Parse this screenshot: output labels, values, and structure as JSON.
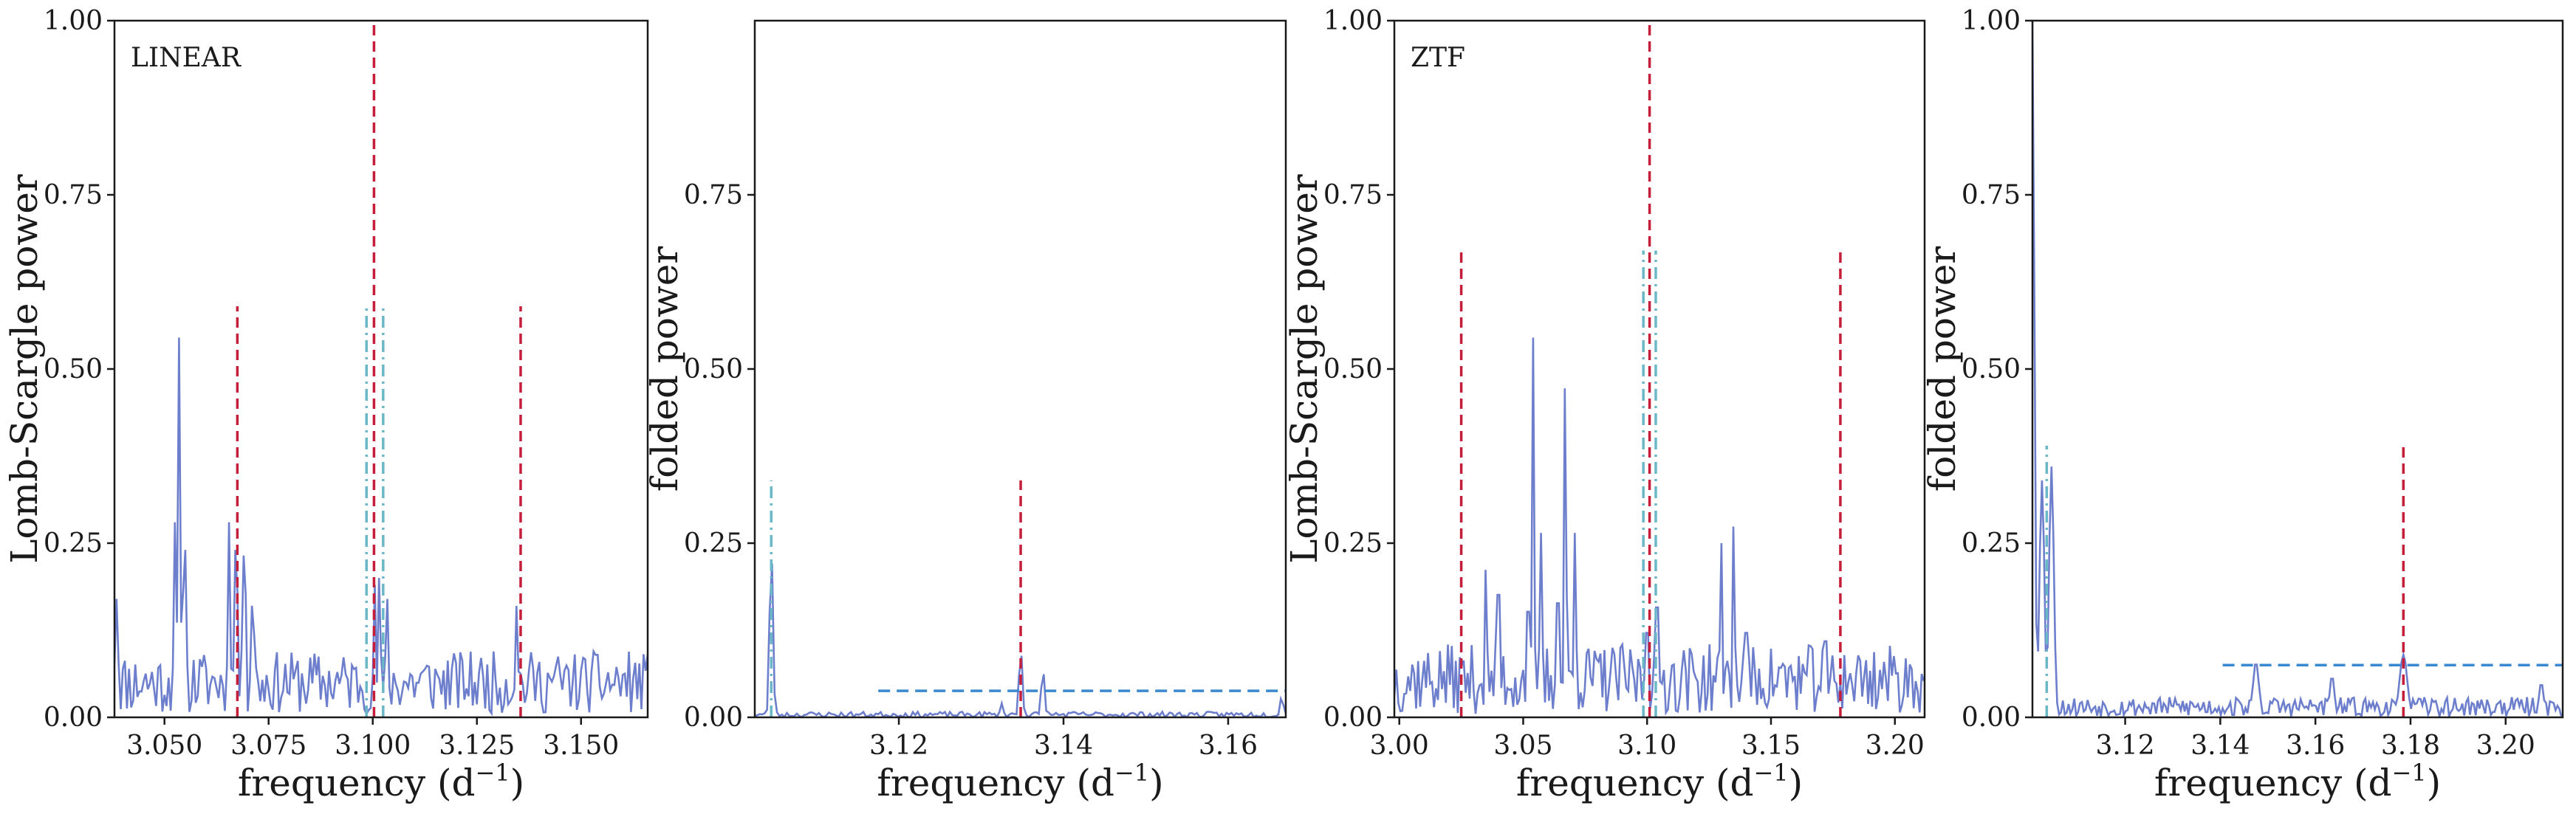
{
  "figure": {
    "colors": {
      "series": "#6d7fcc",
      "red": "#c41e3a",
      "cyan": "#6ab7c8",
      "blue_dash": "#3a88d0",
      "axis": "#1a1a1a"
    }
  },
  "chart_data": [
    {
      "type": "line",
      "title": "",
      "panel_label": "LINEAR",
      "xlabel_main": "frequency (d",
      "xlabel_sup": "−1",
      "xlabel_tail": ")",
      "ylabel": "Lomb-Scargle power",
      "xlim": [
        3.038,
        3.166
      ],
      "ylim": [
        0,
        1
      ],
      "xticks": [
        3.05,
        3.075,
        3.1,
        3.125,
        3.15
      ],
      "xtick_labels": [
        "3.050",
        "3.075",
        "3.100",
        "3.125",
        "3.150"
      ],
      "yticks": [
        0,
        0.25,
        0.5,
        0.75,
        1.0
      ],
      "ytick_labels": [
        "0.00",
        "0.25",
        "0.50",
        "0.75",
        "1.00"
      ],
      "noise": {
        "mean": 0.05,
        "amp": 0.045,
        "step": 0.0005,
        "seed": 11
      },
      "peaks": [
        {
          "x": 3.0385,
          "y": 0.17,
          "w": 0.0004
        },
        {
          "x": 3.0525,
          "y": 0.28,
          "w": 0.0003
        },
        {
          "x": 3.0535,
          "y": 0.545,
          "w": 0.0003
        },
        {
          "x": 3.0548,
          "y": 0.3,
          "w": 0.0003
        },
        {
          "x": 3.0655,
          "y": 0.28,
          "w": 0.0003
        },
        {
          "x": 3.0672,
          "y": 0.3,
          "w": 0.0003
        },
        {
          "x": 3.0692,
          "y": 0.29,
          "w": 0.0003
        },
        {
          "x": 3.0712,
          "y": 0.2,
          "w": 0.0003
        },
        {
          "x": 3.1005,
          "y": 0.19,
          "w": 0.0003
        },
        {
          "x": 3.1015,
          "y": 0.2,
          "w": 0.0003
        },
        {
          "x": 3.1035,
          "y": 0.17,
          "w": 0.0003
        },
        {
          "x": 3.1345,
          "y": 0.16,
          "w": 0.0003
        }
      ],
      "red_lines": [
        {
          "x": 3.0675,
          "ymax": 0.59
        },
        {
          "x": 3.1003,
          "ymax": 1.0
        },
        {
          "x": 3.1355,
          "ymax": 0.59
        }
      ],
      "cyan_lines": [
        {
          "x": 3.0985,
          "ymax": 0.59
        },
        {
          "x": 3.1025,
          "ymax": 0.59
        }
      ],
      "blue_hline": null
    },
    {
      "type": "line",
      "title": "",
      "panel_label": "",
      "xlabel_main": "frequency (d",
      "xlabel_sup": "−1",
      "xlabel_tail": ")",
      "ylabel": "folded power",
      "xlim": [
        3.1025,
        3.167
      ],
      "ylim": [
        0,
        1
      ],
      "xticks": [
        3.12,
        3.14,
        3.16
      ],
      "xtick_labels": [
        "3.12",
        "3.14",
        "3.16"
      ],
      "yticks": [
        0,
        0.25,
        0.5,
        0.75
      ],
      "ytick_labels": [
        "0.00",
        "0.25",
        "0.50",
        "0.75"
      ],
      "noise": {
        "mean": 0.004,
        "amp": 0.004,
        "step": 0.0003,
        "seed": 23
      },
      "peaks": [
        {
          "x": 3.1045,
          "y": 0.25,
          "w": 0.0002
        },
        {
          "x": 3.1325,
          "y": 0.02,
          "w": 0.0002
        },
        {
          "x": 3.1348,
          "y": 0.1,
          "w": 0.0002
        },
        {
          "x": 3.1375,
          "y": 0.07,
          "w": 0.0002
        },
        {
          "x": 3.1665,
          "y": 0.03,
          "w": 0.0002
        }
      ],
      "red_lines": [
        {
          "x": 3.1348,
          "ymax": 0.34
        }
      ],
      "cyan_lines": [
        {
          "x": 3.1045,
          "ymax": 0.34
        }
      ],
      "blue_hline": {
        "y": 0.038,
        "x0": 3.1175,
        "x1": 3.167
      }
    },
    {
      "type": "line",
      "title": "",
      "panel_label": "ZTF",
      "xlabel_main": "frequency (d",
      "xlabel_sup": "−1",
      "xlabel_tail": ")",
      "ylabel": "Lomb-Scargle power",
      "xlim": [
        2.998,
        3.212
      ],
      "ylim": [
        0,
        1
      ],
      "xticks": [
        3.0,
        3.05,
        3.1,
        3.15,
        3.2
      ],
      "xtick_labels": [
        "3.00",
        "3.05",
        "3.10",
        "3.15",
        "3.20"
      ],
      "yticks": [
        0,
        0.25,
        0.5,
        0.75,
        1.0
      ],
      "ytick_labels": [
        "0.00",
        "0.25",
        "0.50",
        "0.75",
        "1.00"
      ],
      "noise": {
        "mean": 0.055,
        "amp": 0.05,
        "step": 0.0008,
        "seed": 37
      },
      "peaks": [
        {
          "x": 3.035,
          "y": 0.24,
          "w": 0.0004
        },
        {
          "x": 3.04,
          "y": 0.29,
          "w": 0.0004
        },
        {
          "x": 3.052,
          "y": 0.25,
          "w": 0.0004
        },
        {
          "x": 3.054,
          "y": 0.545,
          "w": 0.0004
        },
        {
          "x": 3.057,
          "y": 0.3,
          "w": 0.0004
        },
        {
          "x": 3.064,
          "y": 0.27,
          "w": 0.0004
        },
        {
          "x": 3.067,
          "y": 0.535,
          "w": 0.0004
        },
        {
          "x": 3.071,
          "y": 0.3,
          "w": 0.0004
        },
        {
          "x": 3.1,
          "y": 0.2,
          "w": 0.0004
        },
        {
          "x": 3.104,
          "y": 0.26,
          "w": 0.0004
        },
        {
          "x": 3.13,
          "y": 0.25,
          "w": 0.0004
        },
        {
          "x": 3.135,
          "y": 0.31,
          "w": 0.0004
        },
        {
          "x": 3.14,
          "y": 0.2,
          "w": 0.0004
        },
        {
          "x": 3.172,
          "y": 0.18,
          "w": 0.0004
        }
      ],
      "red_lines": [
        {
          "x": 3.025,
          "ymax": 0.67
        },
        {
          "x": 3.101,
          "ymax": 1.0
        },
        {
          "x": 3.178,
          "ymax": 0.67
        }
      ],
      "cyan_lines": [
        {
          "x": 3.0985,
          "ymax": 0.67
        },
        {
          "x": 3.1035,
          "ymax": 0.67
        }
      ],
      "blue_hline": null
    },
    {
      "type": "line",
      "title": "",
      "panel_label": "",
      "xlabel_main": "frequency (d",
      "xlabel_sup": "−1",
      "xlabel_tail": ")",
      "ylabel": "folded power",
      "xlim": [
        3.1005,
        3.212
      ],
      "ylim": [
        0,
        1
      ],
      "xticks": [
        3.12,
        3.14,
        3.16,
        3.18,
        3.2
      ],
      "xtick_labels": [
        "3.12",
        "3.14",
        "3.16",
        "3.18",
        "3.20"
      ],
      "yticks": [
        0,
        0.25,
        0.5,
        0.75,
        1.0
      ],
      "ytick_labels": [
        "0.00",
        "0.25",
        "0.50",
        "0.75",
        "1.00"
      ],
      "noise": {
        "mean": 0.015,
        "amp": 0.014,
        "step": 0.0004,
        "seed": 53
      },
      "peaks": [
        {
          "x": 3.1005,
          "y": 1.0,
          "w": 0.0004
        },
        {
          "x": 3.1025,
          "y": 0.34,
          "w": 0.0005
        },
        {
          "x": 3.1045,
          "y": 0.36,
          "w": 0.0005
        },
        {
          "x": 3.1475,
          "y": 0.08,
          "w": 0.0006
        },
        {
          "x": 3.1635,
          "y": 0.06,
          "w": 0.0005
        },
        {
          "x": 3.1785,
          "y": 0.09,
          "w": 0.0008
        },
        {
          "x": 3.2075,
          "y": 0.05,
          "w": 0.0005
        }
      ],
      "red_lines": [
        {
          "x": 3.1785,
          "ymax": 0.39
        }
      ],
      "cyan_lines": [
        {
          "x": 3.1035,
          "ymax": 0.39
        }
      ],
      "blue_hline": {
        "y": 0.075,
        "x0": 3.1405,
        "x1": 3.212
      }
    }
  ]
}
